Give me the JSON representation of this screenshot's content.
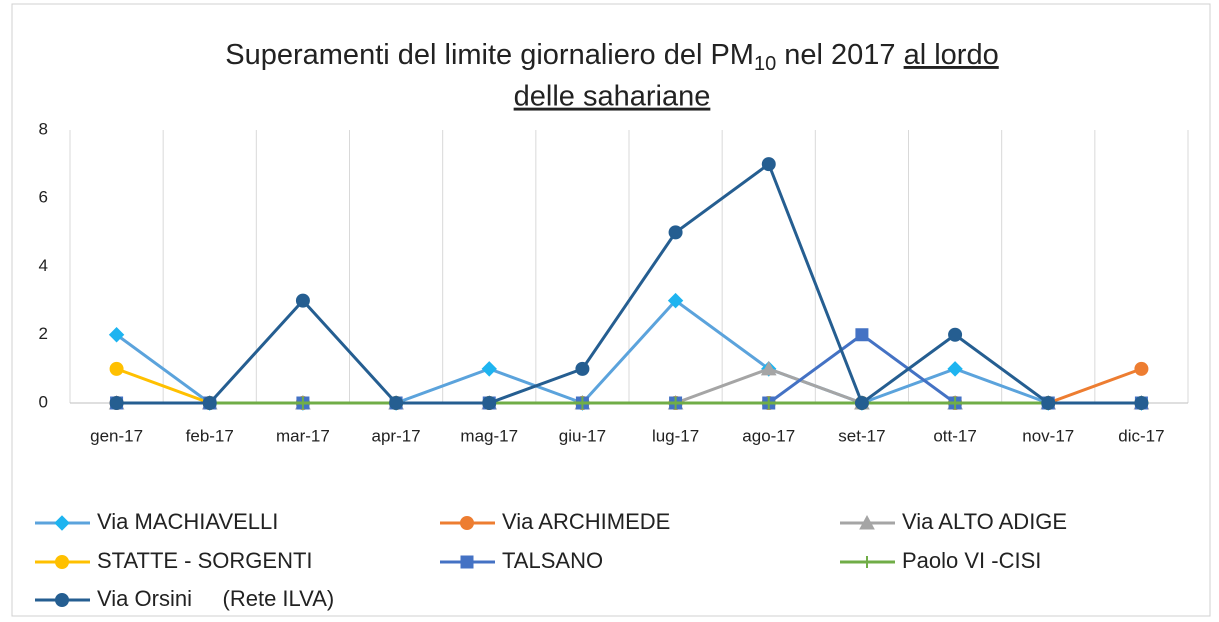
{
  "chart_data": {
    "type": "line",
    "title": {
      "text": "Superamenti del limite giornaliero del PM",
      "subscript": "10",
      "text2": " nel 2017 ",
      "underlined": [
        "al lordo",
        "delle sahariane"
      ]
    },
    "categories": [
      "gen-17",
      "feb-17",
      "mar-17",
      "apr-17",
      "mag-17",
      "giu-17",
      "lug-17",
      "ago-17",
      "set-17",
      "ott-17",
      "nov-17",
      "dic-17"
    ],
    "ylim": [
      0,
      8
    ],
    "yticks": [
      0,
      2,
      4,
      6,
      8
    ],
    "grid": true,
    "legend": "bottom",
    "series": [
      {
        "name": "Via MACHIAVELLI",
        "color": "#5ba3dc",
        "marker_color": "#1eb4f0",
        "marker": "diamond",
        "values": [
          2,
          0,
          0,
          0,
          1,
          0,
          3,
          1,
          0,
          1,
          0,
          0
        ]
      },
      {
        "name": "Via ARCHIMEDE",
        "color": "#ed7d31",
        "marker": "circle",
        "values": [
          0,
          0,
          0,
          0,
          0,
          0,
          0,
          0,
          0,
          0,
          0,
          1
        ]
      },
      {
        "name": "Via ALTO ADIGE",
        "color": "#a5a5a5",
        "marker": "triangle",
        "values": [
          0,
          0,
          0,
          0,
          0,
          0,
          0,
          1,
          0,
          0,
          0,
          0
        ]
      },
      {
        "name": "STATTE - SORGENTI",
        "color": "#ffc000",
        "marker": "circle",
        "values": [
          1,
          0,
          0,
          0,
          0,
          0,
          0,
          0,
          0,
          0,
          0,
          0
        ]
      },
      {
        "name": "TALSANO",
        "color": "#4472c4",
        "marker": "square",
        "values": [
          0,
          0,
          0,
          0,
          0,
          0,
          0,
          0,
          2,
          0,
          0,
          0
        ]
      },
      {
        "name": "Paolo VI -CISI",
        "color": "#70ad47",
        "marker": "plus",
        "values": [
          0,
          0,
          0,
          0,
          0,
          0,
          0,
          0,
          0,
          0,
          0,
          0
        ]
      },
      {
        "name": "Via Orsini     (Rete ILVA)",
        "color": "#255e91",
        "marker": "circle",
        "values": [
          0,
          0,
          3,
          0,
          0,
          1,
          5,
          7,
          0,
          2,
          0,
          0
        ]
      }
    ]
  }
}
